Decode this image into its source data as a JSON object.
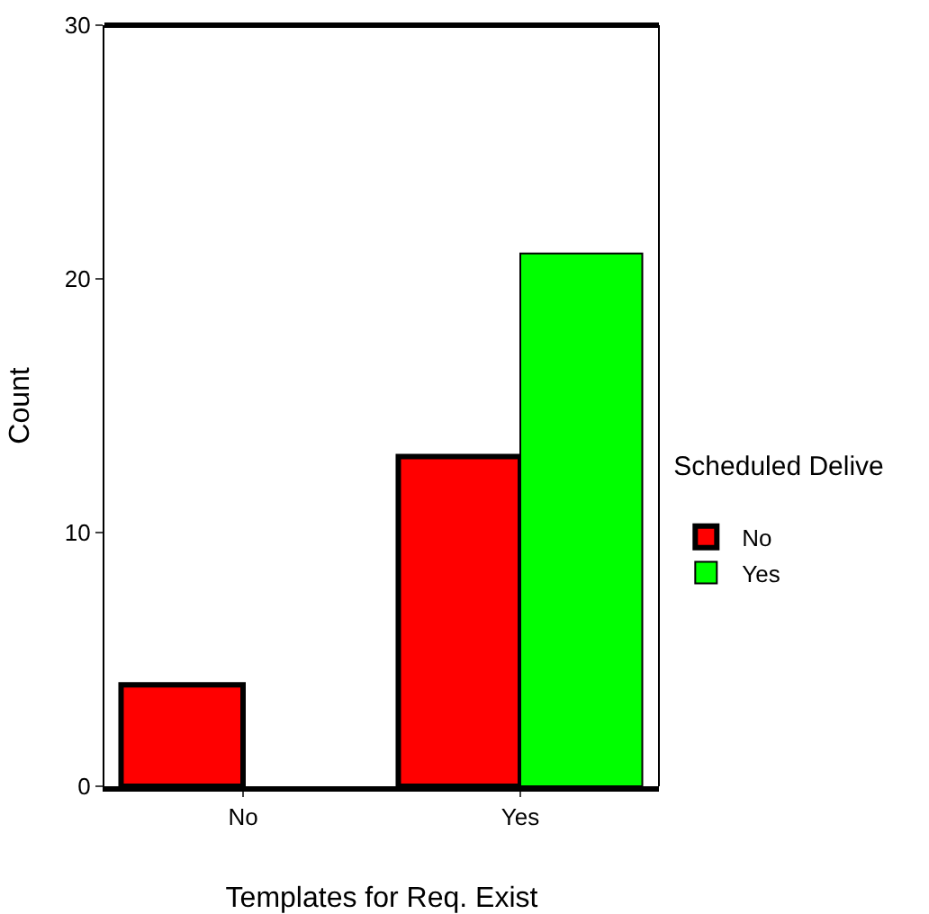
{
  "chart_data": {
    "type": "bar",
    "categories": [
      "No",
      "Yes"
    ],
    "series": [
      {
        "name": "No",
        "color": "#ff0000",
        "values": [
          4,
          13
        ]
      },
      {
        "name": "Yes",
        "color": "#00ff00",
        "values": [
          null,
          21
        ]
      }
    ],
    "xlabel": "Templates for Req. Exist",
    "ylabel": "Count",
    "legend_title": "Scheduled Delive",
    "ylim": [
      0,
      30
    ],
    "yticks": [
      0,
      10,
      20,
      30
    ],
    "grid": false,
    "legend": "right"
  }
}
